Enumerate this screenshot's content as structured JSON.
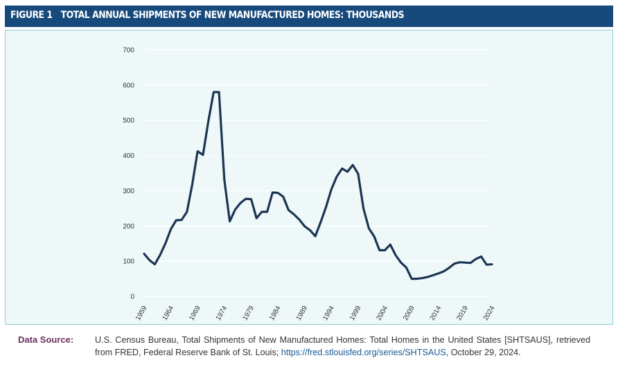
{
  "header": {
    "figure_label": "FIGURE 1",
    "title": "TOTAL ANNUAL SHIPMENTS OF NEW MANUFACTURED HOMES: THOUSANDS"
  },
  "source": {
    "label": "Data Source:",
    "text": "U.S. Census Bureau, Total Shipments of New Manufactured Homes: Total Homes in the United States [SHTSAUS], retrieved from FRED, Federal Reserve Bank of St. Louis; ",
    "url": "https://fred.stlouisfed.org/series/SHTSAUS",
    "date": ", October 29, 2024."
  },
  "colors": {
    "header_bg": "#174a7c",
    "panel_bg": "#eef8f8",
    "line": "#1c3553",
    "source_label": "#6b2f5f"
  },
  "chart_data": {
    "type": "line",
    "title": "",
    "xlabel": "",
    "ylabel": "",
    "ylim": [
      0,
      700
    ],
    "yticks": [
      0,
      100,
      200,
      300,
      400,
      500,
      600,
      700
    ],
    "xlim": [
      1959,
      2024
    ],
    "xticks": [
      "1959",
      "1964",
      "1969",
      "1974",
      "1979",
      "1984",
      "1989",
      "1994",
      "1999",
      "2004",
      "2009",
      "2014",
      "2019",
      "2024"
    ],
    "grid": "horizontal",
    "series": [
      {
        "x": [
          1959,
          1960,
          1961,
          1962,
          1963,
          1964,
          1965,
          1966,
          1967,
          1968,
          1969,
          1970,
          1971,
          1972,
          1973,
          1974,
          1975,
          1976,
          1977,
          1978,
          1979,
          1980,
          1981,
          1982,
          1983,
          1984,
          1985,
          1986,
          1987,
          1988,
          1989,
          1990,
          1991,
          1992,
          1993,
          1994,
          1995,
          1996,
          1997,
          1998,
          1999,
          2000,
          2001,
          2002,
          2003,
          2004,
          2005,
          2006,
          2007,
          2008,
          2009,
          2010,
          2011,
          2012,
          2013,
          2014,
          2015,
          2016,
          2017,
          2018,
          2019,
          2020,
          2021,
          2022,
          2023,
          2024
        ],
        "values": [
          121,
          103,
          91,
          118,
          151,
          191,
          216,
          217,
          240,
          318,
          412,
          402,
          497,
          580,
          580,
          331,
          213,
          246,
          265,
          277,
          276,
          222,
          240,
          240,
          295,
          294,
          283,
          245,
          233,
          218,
          199,
          188,
          171,
          211,
          254,
          304,
          340,
          363,
          354,
          373,
          348,
          250,
          193,
          170,
          131,
          131,
          147,
          117,
          96,
          82,
          50,
          50,
          52,
          55,
          60,
          65,
          71,
          81,
          93,
          97,
          96,
          95,
          106,
          113,
          90,
          91
        ]
      }
    ]
  }
}
